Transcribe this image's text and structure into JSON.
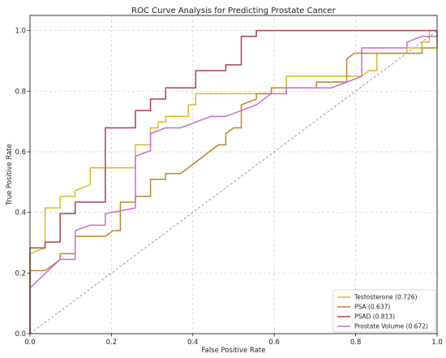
{
  "chart_data": {
    "type": "line",
    "title": "ROC Curve Analysis for Predicting Prostate Cancer",
    "xlabel": "False Positive Rate",
    "ylabel": "True Positive Rate",
    "xlim": [
      0,
      1.0
    ],
    "ylim": [
      0,
      1.05
    ],
    "xticks": [
      0,
      0.2,
      0.4,
      0.6,
      0.8,
      1.0
    ],
    "xtick_labels": [
      "0.0",
      "0.2",
      "0.4",
      "0.6",
      "0.8",
      "1.0"
    ],
    "yticks": [
      0,
      0.2,
      0.4,
      0.6,
      0.8,
      1.0
    ],
    "ytick_labels": [
      "0.0",
      "0.2",
      "0.4",
      "0.6",
      "0.8",
      "1.0"
    ],
    "grid": true,
    "legend": "lower right",
    "reference_line": {
      "x": [
        0,
        1
      ],
      "y": [
        0,
        1
      ],
      "style": "dashed",
      "color": "#808080"
    },
    "series": [
      {
        "name": "Testosterone (0.726)",
        "color": "#d9b92c",
        "x": [
          0,
          0,
          0.037,
          0.037,
          0.074,
          0.074,
          0.111,
          0.111,
          0.148,
          0.148,
          0.259,
          0.259,
          0.296,
          0.296,
          0.315,
          0.315,
          0.333,
          0.333,
          0.389,
          0.389,
          0.407,
          0.407,
          0.593,
          0.593,
          0.63,
          0.63,
          0.815,
          0.833,
          0.852,
          0.852,
          0.926,
          0.926,
          0.963,
          0.963,
          0.981,
          0.981,
          1.0
        ],
        "y": [
          0,
          0.264,
          0.283,
          0.415,
          0.415,
          0.453,
          0.453,
          0.472,
          0.491,
          0.547,
          0.547,
          0.623,
          0.623,
          0.679,
          0.679,
          0.698,
          0.698,
          0.717,
          0.717,
          0.755,
          0.755,
          0.792,
          0.792,
          0.811,
          0.811,
          0.849,
          0.849,
          0.868,
          0.868,
          0.925,
          0.925,
          0.943,
          0.943,
          0.962,
          0.962,
          1.0,
          1.0
        ]
      },
      {
        "name": "PSA (0.637)",
        "color": "#b8862b",
        "x": [
          0,
          0,
          0.037,
          0.056,
          0.074,
          0.074,
          0.111,
          0.111,
          0.185,
          0.204,
          0.222,
          0.222,
          0.259,
          0.259,
          0.296,
          0.296,
          0.333,
          0.333,
          0.37,
          0.389,
          0.407,
          0.426,
          0.444,
          0.463,
          0.481,
          0.481,
          0.5,
          0.519,
          0.519,
          0.556,
          0.556,
          0.593,
          0.593,
          0.704,
          0.704,
          0.778,
          0.778,
          0.796,
          0.963,
          0.963,
          1.0,
          1.0
        ],
        "y": [
          0,
          0.208,
          0.208,
          0.226,
          0.245,
          0.264,
          0.264,
          0.321,
          0.321,
          0.34,
          0.34,
          0.434,
          0.434,
          0.453,
          0.453,
          0.509,
          0.509,
          0.528,
          0.528,
          0.547,
          0.566,
          0.585,
          0.604,
          0.623,
          0.623,
          0.66,
          0.679,
          0.679,
          0.755,
          0.774,
          0.792,
          0.792,
          0.811,
          0.811,
          0.83,
          0.83,
          0.906,
          0.925,
          0.925,
          0.943,
          0.943,
          1.0
        ]
      },
      {
        "name": "PSAD (0.813)",
        "color": "#b0404f",
        "x": [
          0,
          0,
          0.037,
          0.037,
          0.074,
          0.074,
          0.111,
          0.111,
          0.185,
          0.185,
          0.259,
          0.259,
          0.296,
          0.296,
          0.333,
          0.333,
          0.407,
          0.407,
          0.481,
          0.481,
          0.519,
          0.519,
          0.556,
          0.556,
          1.0
        ],
        "y": [
          0,
          0.283,
          0.283,
          0.302,
          0.302,
          0.396,
          0.396,
          0.434,
          0.434,
          0.679,
          0.679,
          0.736,
          0.736,
          0.774,
          0.774,
          0.811,
          0.811,
          0.868,
          0.868,
          0.887,
          0.887,
          0.981,
          0.981,
          1.0,
          1.0
        ]
      },
      {
        "name": "Prostate Volume (0.672)",
        "color": "#cc6ad6",
        "x": [
          0,
          0,
          0.074,
          0.111,
          0.111,
          0.148,
          0.185,
          0.185,
          0.222,
          0.259,
          0.259,
          0.296,
          0.296,
          0.333,
          0.37,
          0.407,
          0.444,
          0.481,
          0.519,
          0.556,
          0.593,
          0.63,
          0.63,
          0.741,
          0.778,
          0.815,
          0.815,
          0.926,
          0.926,
          0.963,
          1.0,
          1.0
        ],
        "y": [
          0,
          0.151,
          0.245,
          0.245,
          0.34,
          0.358,
          0.358,
          0.396,
          0.405,
          0.415,
          0.585,
          0.604,
          0.66,
          0.679,
          0.679,
          0.698,
          0.717,
          0.717,
          0.736,
          0.755,
          0.792,
          0.792,
          0.811,
          0.811,
          0.83,
          0.849,
          0.943,
          0.943,
          0.962,
          0.981,
          0.981,
          1.0
        ]
      }
    ]
  }
}
